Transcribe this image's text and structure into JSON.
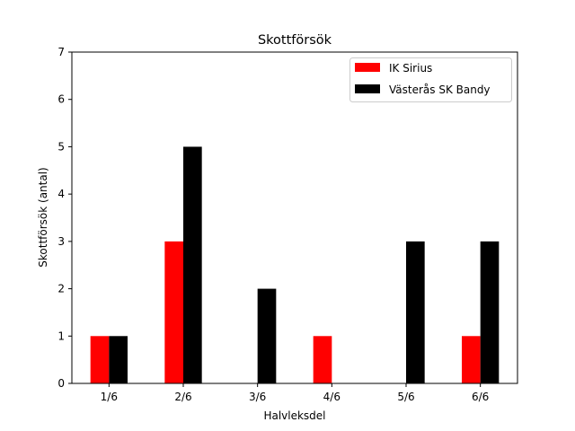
{
  "chart_data": {
    "type": "bar",
    "title": "Skottförsök",
    "xlabel": "Halvleksdel",
    "ylabel": "Skottförsök (antal)",
    "categories": [
      "1/6",
      "2/6",
      "3/6",
      "4/6",
      "5/6",
      "6/6"
    ],
    "series": [
      {
        "name": "IK Sirius",
        "color": "#ff0000",
        "values": [
          1,
          3,
          0,
          1,
          0,
          1
        ]
      },
      {
        "name": "Västerås SK Bandy",
        "color": "#000000",
        "values": [
          1,
          5,
          2,
          0,
          3,
          3
        ]
      }
    ],
    "ylim": [
      0,
      7
    ],
    "yticks": [
      "0",
      "1",
      "2",
      "3",
      "4",
      "5",
      "6",
      "7"
    ],
    "grid": false,
    "legend_position": "top-right"
  }
}
